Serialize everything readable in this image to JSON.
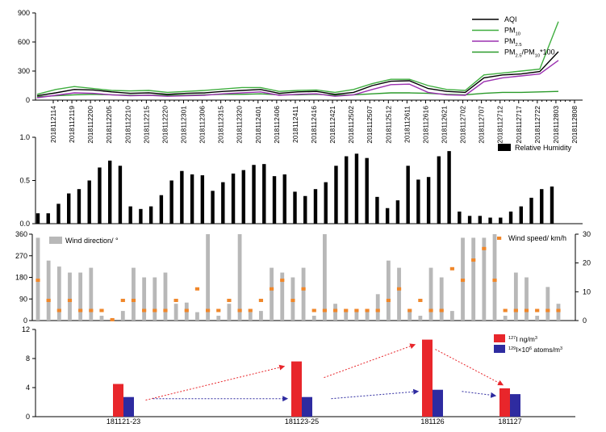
{
  "chart_data": [
    {
      "type": "line",
      "panel": "air-quality",
      "ylim": [
        0,
        900
      ],
      "yticks": [
        "0",
        "300",
        "600",
        "900"
      ],
      "x": [
        "2018112114",
        "2018112119",
        "2018112200",
        "2018112205",
        "2018112210",
        "2018112215",
        "2018112220",
        "2018112301",
        "2018112306",
        "2018112315",
        "2018112320",
        "2018112401",
        "2018112406",
        "2018112411",
        "2018112416",
        "2018112421",
        "2018112502",
        "2018112507",
        "2018112512",
        "2018112611",
        "2018112616",
        "2018112621",
        "2018112702",
        "2018112707",
        "2018112712",
        "2018112717",
        "2018112722",
        "2018112803",
        "2018112808"
      ],
      "xtick_labels": [
        "2018112114",
        "2018112119",
        "2018112200",
        "2018112205",
        "2018112210",
        "2018112215",
        "2018112220",
        "2018112301",
        "2018112306",
        "2018112315",
        "2018112320",
        "2018112401",
        "2018112406",
        "2018112411",
        "2018112416",
        "2018112421",
        "2018112502",
        "2018112507",
        "2018112512",
        "2018112611",
        "2018112616",
        "2018112621",
        "2018112702",
        "2018112707",
        "2018112712",
        "2018112717",
        "2018112722",
        "2018112803",
        "2018112808"
      ],
      "legend": [
        {
          "name": "AQI",
          "sub": "",
          "sup": "",
          "suffix": ""
        },
        {
          "name": "PM",
          "sub": "10",
          "sup": "",
          "suffix": ""
        },
        {
          "name": "PM",
          "sub": "2.5",
          "sup": "",
          "suffix": ""
        },
        {
          "name": "PM",
          "sub": "2.5",
          "sup": "",
          "suffix": "/PM",
          "sub2": "10",
          "suffix2": "*100"
        }
      ],
      "series": [
        {
          "name": "AQI",
          "color": "#000000",
          "values": [
            45,
            75,
            110,
            105,
            85,
            70,
            75,
            60,
            70,
            75,
            90,
            100,
            110,
            70,
            85,
            90,
            60,
            80,
            150,
            195,
            200,
            120,
            90,
            80,
            230,
            260,
            270,
            295,
            500
          ]
        },
        {
          "name": "PM10",
          "color": "#3fae3f",
          "values": [
            60,
            110,
            140,
            120,
            100,
            95,
            100,
            80,
            90,
            100,
            115,
            130,
            130,
            90,
            100,
            105,
            80,
            110,
            170,
            215,
            215,
            150,
            110,
            100,
            260,
            280,
            300,
            320,
            810
          ]
        },
        {
          "name": "PM2.5",
          "color": "#9b30b0",
          "values": [
            25,
            50,
            75,
            70,
            55,
            45,
            50,
            40,
            45,
            50,
            65,
            75,
            85,
            50,
            60,
            65,
            40,
            55,
            110,
            160,
            165,
            80,
            55,
            50,
            190,
            230,
            250,
            270,
            410
          ]
        },
        {
          "name": "PM2.5/PM10*100",
          "color": "#2a9a2a",
          "values": [
            35,
            45,
            55,
            60,
            55,
            50,
            50,
            50,
            50,
            55,
            60,
            60,
            65,
            55,
            55,
            60,
            50,
            55,
            65,
            75,
            75,
            70,
            60,
            55,
            70,
            80,
            80,
            85,
            90
          ]
        }
      ]
    },
    {
      "type": "bar",
      "panel": "relative-humidity",
      "ylim": [
        0,
        1.0
      ],
      "yticks": [
        "0.0",
        "0.5",
        "1.0"
      ],
      "legend": "Relative Humidity",
      "values": [
        0.12,
        0.12,
        0.23,
        0.35,
        0.4,
        0.5,
        0.65,
        0.73,
        0.67,
        0.2,
        0.17,
        0.2,
        0.33,
        0.5,
        0.61,
        0.57,
        0.56,
        0.38,
        0.48,
        0.58,
        0.62,
        0.68,
        0.69,
        0.55,
        0.57,
        0.37,
        0.32,
        0.4,
        0.48,
        0.67,
        0.78,
        0.81,
        0.76,
        0.31,
        0.18,
        0.27,
        0.67,
        0.51,
        0.54,
        0.78,
        0.84,
        0.14,
        0.09,
        0.09,
        0.07,
        0.07,
        0.14,
        0.2,
        0.3,
        0.4,
        0.43
      ]
    },
    {
      "type": "bar",
      "panel": "wind",
      "ylim_left": [
        0,
        360
      ],
      "yticks_left": [
        "0",
        "90",
        "180",
        "270",
        "360"
      ],
      "ylim_right": [
        0,
        30
      ],
      "yticks_right": [
        "0",
        "10",
        "20",
        "30"
      ],
      "direction_legend": "Wind direction/ °",
      "speed_legend": "Wind speed/ km/h",
      "direction": [
        345,
        250,
        225,
        200,
        200,
        220,
        20,
        5,
        40,
        220,
        180,
        180,
        200,
        70,
        75,
        35,
        360,
        20,
        70,
        360,
        35,
        40,
        220,
        200,
        180,
        220,
        20,
        360,
        70,
        40,
        40,
        40,
        110,
        250,
        220,
        40,
        20,
        220,
        180,
        40,
        345,
        345,
        345,
        360,
        20,
        200,
        180,
        20,
        140,
        70
      ],
      "speed": [
        14,
        7,
        3.5,
        7,
        3.5,
        3.5,
        3.5,
        0.3,
        7,
        7,
        3.5,
        3.5,
        3.5,
        7,
        3.5,
        11,
        3.5,
        3.5,
        7,
        3.5,
        3.5,
        7,
        11,
        14,
        7,
        11,
        3.5,
        3.5,
        3.5,
        3.5,
        3.5,
        3.5,
        3.5,
        7,
        11,
        3.5,
        7,
        3.5,
        3.5,
        18,
        14,
        21,
        25,
        14,
        3.5,
        3.5,
        3.5,
        3.5,
        3.5,
        3.5
      ]
    },
    {
      "type": "bar",
      "panel": "iodine",
      "ylim": [
        0,
        12
      ],
      "yticks": [
        "0",
        "4",
        "8",
        "12"
      ],
      "categories": [
        "181121-23",
        "181123-25",
        "181126",
        "181127"
      ],
      "legend": [
        {
          "sup": "127",
          "text": "I ng/m",
          "sup2": "3"
        },
        {
          "sup": "129",
          "text": "I×10",
          "sup2": "6",
          "text2": " atoms/m",
          "sup3": "3"
        }
      ],
      "series": [
        {
          "name": "127I ng/m3",
          "color": "#e8262b",
          "values": [
            4.5,
            7.6,
            10.6,
            3.9
          ]
        },
        {
          "name": "129I×10^6 atoms/m3",
          "color": "#2e2ba0",
          "values": [
            2.7,
            2.7,
            3.7,
            3.1
          ]
        }
      ]
    }
  ]
}
